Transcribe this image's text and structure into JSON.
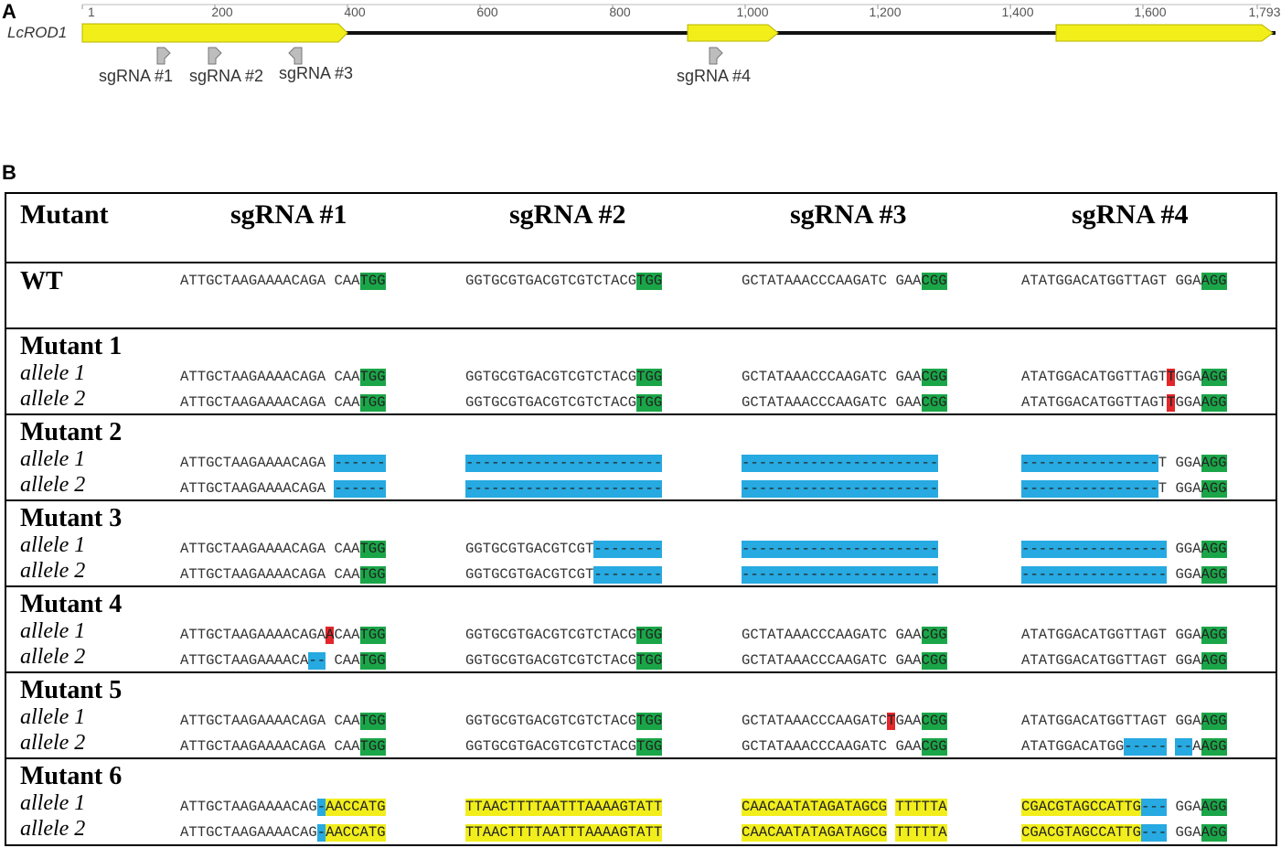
{
  "panel_a": {
    "label": "A",
    "gene": "LcROD1",
    "scale_ticks": [
      "1",
      "200",
      "400",
      "600",
      "800",
      "1,000",
      "1,200",
      "1,400",
      "1,600",
      "1,793"
    ],
    "sgrnas": [
      "sgRNA #1",
      "sgRNA #2",
      "sgRNA #3",
      "sgRNA #4"
    ],
    "exon_color": "#f1ee1a"
  },
  "panel_b": {
    "label": "B",
    "headers": [
      "Mutant",
      "sgRNA #1",
      "sgRNA #2",
      "sgRNA #3",
      "sgRNA #4"
    ],
    "wt": {
      "label": "WT",
      "seqs": [
        [
          [
            "ATTGCTAAGAAAACAGA CAA",
            ""
          ],
          [
            "TGG",
            "g"
          ]
        ],
        [
          [
            "GGTGCGTGACGTCGTCTACG",
            ""
          ],
          [
            "TGG",
            "g"
          ]
        ],
        [
          [
            "GCTATAAACCCAAGATC GAA",
            ""
          ],
          [
            "CGG",
            "g"
          ]
        ],
        [
          [
            "ATATGGACATGGTTAGT GGA",
            ""
          ],
          [
            "AGG",
            "g"
          ]
        ]
      ]
    },
    "mutants": [
      {
        "title": "Mutant 1",
        "alleles": [
          {
            "label": "allele 1",
            "seqs": [
              [
                [
                  "ATTGCTAAGAAAACAGA CAA",
                  ""
                ],
                [
                  "TGG",
                  "g"
                ]
              ],
              [
                [
                  "GGTGCGTGACGTCGTCTACG",
                  ""
                ],
                [
                  "TGG",
                  "g"
                ]
              ],
              [
                [
                  "GCTATAAACCCAAGATC GAA",
                  ""
                ],
                [
                  "CGG",
                  "g"
                ]
              ],
              [
                [
                  "ATATGGACATGGTTAGT",
                  ""
                ],
                [
                  "T",
                  "r"
                ],
                [
                  "GGA",
                  ""
                ],
                [
                  "AGG",
                  "g"
                ]
              ]
            ]
          },
          {
            "label": "allele 2",
            "seqs": [
              [
                [
                  "ATTGCTAAGAAAACAGA CAA",
                  ""
                ],
                [
                  "TGG",
                  "g"
                ]
              ],
              [
                [
                  "GGTGCGTGACGTCGTCTACG",
                  ""
                ],
                [
                  "TGG",
                  "g"
                ]
              ],
              [
                [
                  "GCTATAAACCCAAGATC GAA",
                  ""
                ],
                [
                  "CGG",
                  "g"
                ]
              ],
              [
                [
                  "ATATGGACATGGTTAGT",
                  ""
                ],
                [
                  "T",
                  "r"
                ],
                [
                  "GGA",
                  ""
                ],
                [
                  "AGG",
                  "g"
                ]
              ]
            ]
          }
        ]
      },
      {
        "title": "Mutant 2",
        "alleles": [
          {
            "label": "allele 1",
            "seqs": [
              [
                [
                  "ATTGCTAAGAAAACAGA ",
                  ""
                ],
                [
                  "------",
                  "b"
                ]
              ],
              [
                [
                  "-----------------------",
                  "b"
                ]
              ],
              [
                [
                  "-----------------------",
                  "b"
                ]
              ],
              [
                [
                  "----------------",
                  "b"
                ],
                [
                  "T GGA",
                  ""
                ],
                [
                  "AGG",
                  "g"
                ]
              ]
            ]
          },
          {
            "label": "allele 2",
            "seqs": [
              [
                [
                  "ATTGCTAAGAAAACAGA ",
                  ""
                ],
                [
                  "------",
                  "b"
                ]
              ],
              [
                [
                  "-----------------------",
                  "b"
                ]
              ],
              [
                [
                  "-----------------------",
                  "b"
                ]
              ],
              [
                [
                  "----------------",
                  "b"
                ],
                [
                  "T GGA",
                  ""
                ],
                [
                  "AGG",
                  "g"
                ]
              ]
            ]
          }
        ]
      },
      {
        "title": "Mutant 3",
        "alleles": [
          {
            "label": "allele 1",
            "seqs": [
              [
                [
                  "ATTGCTAAGAAAACAGA CAA",
                  ""
                ],
                [
                  "TGG",
                  "g"
                ]
              ],
              [
                [
                  "GGTGCGTGACGTCGT",
                  ""
                ],
                [
                  "--------",
                  "b"
                ]
              ],
              [
                [
                  "-----------------------",
                  "b"
                ]
              ],
              [
                [
                  "-----------------",
                  "b"
                ],
                [
                  " GGA",
                  ""
                ],
                [
                  "AGG",
                  "g"
                ]
              ]
            ]
          },
          {
            "label": "allele 2",
            "seqs": [
              [
                [
                  "ATTGCTAAGAAAACAGA CAA",
                  ""
                ],
                [
                  "TGG",
                  "g"
                ]
              ],
              [
                [
                  "GGTGCGTGACGTCGT",
                  ""
                ],
                [
                  "--------",
                  "b"
                ]
              ],
              [
                [
                  "-----------------------",
                  "b"
                ]
              ],
              [
                [
                  "-----------------",
                  "b"
                ],
                [
                  " GGA",
                  ""
                ],
                [
                  "AGG",
                  "g"
                ]
              ]
            ]
          }
        ]
      },
      {
        "title": "Mutant 4",
        "alleles": [
          {
            "label": "allele 1",
            "seqs": [
              [
                [
                  "ATTGCTAAGAAAACAGA",
                  ""
                ],
                [
                  "A",
                  "r"
                ],
                [
                  "CAA",
                  ""
                ],
                [
                  "TGG",
                  "g"
                ]
              ],
              [
                [
                  "GGTGCGTGACGTCGTCTACG",
                  ""
                ],
                [
                  "TGG",
                  "g"
                ]
              ],
              [
                [
                  "GCTATAAACCCAAGATC GAA",
                  ""
                ],
                [
                  "CGG",
                  "g"
                ]
              ],
              [
                [
                  "ATATGGACATGGTTAGT GGA",
                  ""
                ],
                [
                  "AGG",
                  "g"
                ]
              ]
            ]
          },
          {
            "label": "allele 2",
            "seqs": [
              [
                [
                  "ATTGCTAAGAAAACA",
                  ""
                ],
                [
                  "--",
                  "b"
                ],
                [
                  " CAA",
                  ""
                ],
                [
                  "TGG",
                  "g"
                ]
              ],
              [
                [
                  "GGTGCGTGACGTCGTCTACG",
                  ""
                ],
                [
                  "TGG",
                  "g"
                ]
              ],
              [
                [
                  "GCTATAAACCCAAGATC GAA",
                  ""
                ],
                [
                  "CGG",
                  "g"
                ]
              ],
              [
                [
                  "ATATGGACATGGTTAGT GGA",
                  ""
                ],
                [
                  "AGG",
                  "g"
                ]
              ]
            ]
          }
        ]
      },
      {
        "title": "Mutant 5",
        "alleles": [
          {
            "label": "allele 1",
            "seqs": [
              [
                [
                  "ATTGCTAAGAAAACAGA CAA",
                  ""
                ],
                [
                  "TGG",
                  "g"
                ]
              ],
              [
                [
                  "GGTGCGTGACGTCGTCTACG",
                  ""
                ],
                [
                  "TGG",
                  "g"
                ]
              ],
              [
                [
                  "GCTATAAACCCAAGATC",
                  ""
                ],
                [
                  "T",
                  "r"
                ],
                [
                  "GAA",
                  ""
                ],
                [
                  "CGG",
                  "g"
                ]
              ],
              [
                [
                  "ATATGGACATGGTTAGT GGA",
                  ""
                ],
                [
                  "AGG",
                  "g"
                ]
              ]
            ]
          },
          {
            "label": "allele 2",
            "seqs": [
              [
                [
                  "ATTGCTAAGAAAACAGA CAA",
                  ""
                ],
                [
                  "TGG",
                  "g"
                ]
              ],
              [
                [
                  "GGTGCGTGACGTCGTCTACG",
                  ""
                ],
                [
                  "TGG",
                  "g"
                ]
              ],
              [
                [
                  "GCTATAAACCCAAGATC GAA",
                  ""
                ],
                [
                  "CGG",
                  "g"
                ]
              ],
              [
                [
                  "ATATGGACATGG",
                  ""
                ],
                [
                  "-----",
                  "b"
                ],
                [
                  " ",
                  ""
                ],
                [
                  "--",
                  "b"
                ],
                [
                  "A",
                  ""
                ],
                [
                  "AGG",
                  "g"
                ]
              ]
            ]
          }
        ]
      },
      {
        "title": "Mutant 6",
        "alleles": [
          {
            "label": "allele 1",
            "seqs": [
              [
                [
                  "ATTGCTAAGAAAACAG",
                  ""
                ],
                [
                  "-",
                  "b"
                ],
                [
                  "AACCATG",
                  "y"
                ]
              ],
              [
                [
                  "TTAACTTTTAATTTAAAAGTATT",
                  "y"
                ]
              ],
              [
                [
                  "CAACAATATAGATAGCG",
                  "y"
                ],
                [
                  " ",
                  ""
                ],
                [
                  "TTTTTA",
                  "y"
                ]
              ],
              [
                [
                  "CGACGTAGCCATTG",
                  "y"
                ],
                [
                  "---",
                  "b"
                ],
                [
                  " GGA",
                  ""
                ],
                [
                  "AGG",
                  "g"
                ]
              ]
            ]
          },
          {
            "label": "allele 2",
            "seqs": [
              [
                [
                  "ATTGCTAAGAAAACAG",
                  ""
                ],
                [
                  "-",
                  "b"
                ],
                [
                  "AACCATG",
                  "y"
                ]
              ],
              [
                [
                  "TTAACTTTTAATTTAAAAGTATT",
                  "y"
                ]
              ],
              [
                [
                  "CAACAATATAGATAGCG",
                  "y"
                ],
                [
                  " ",
                  ""
                ],
                [
                  "TTTTTA",
                  "y"
                ]
              ],
              [
                [
                  "CGACGTAGCCATTG",
                  "y"
                ],
                [
                  "---",
                  "b"
                ],
                [
                  " GGA",
                  ""
                ],
                [
                  "AGG",
                  "g"
                ]
              ]
            ]
          }
        ]
      }
    ]
  }
}
